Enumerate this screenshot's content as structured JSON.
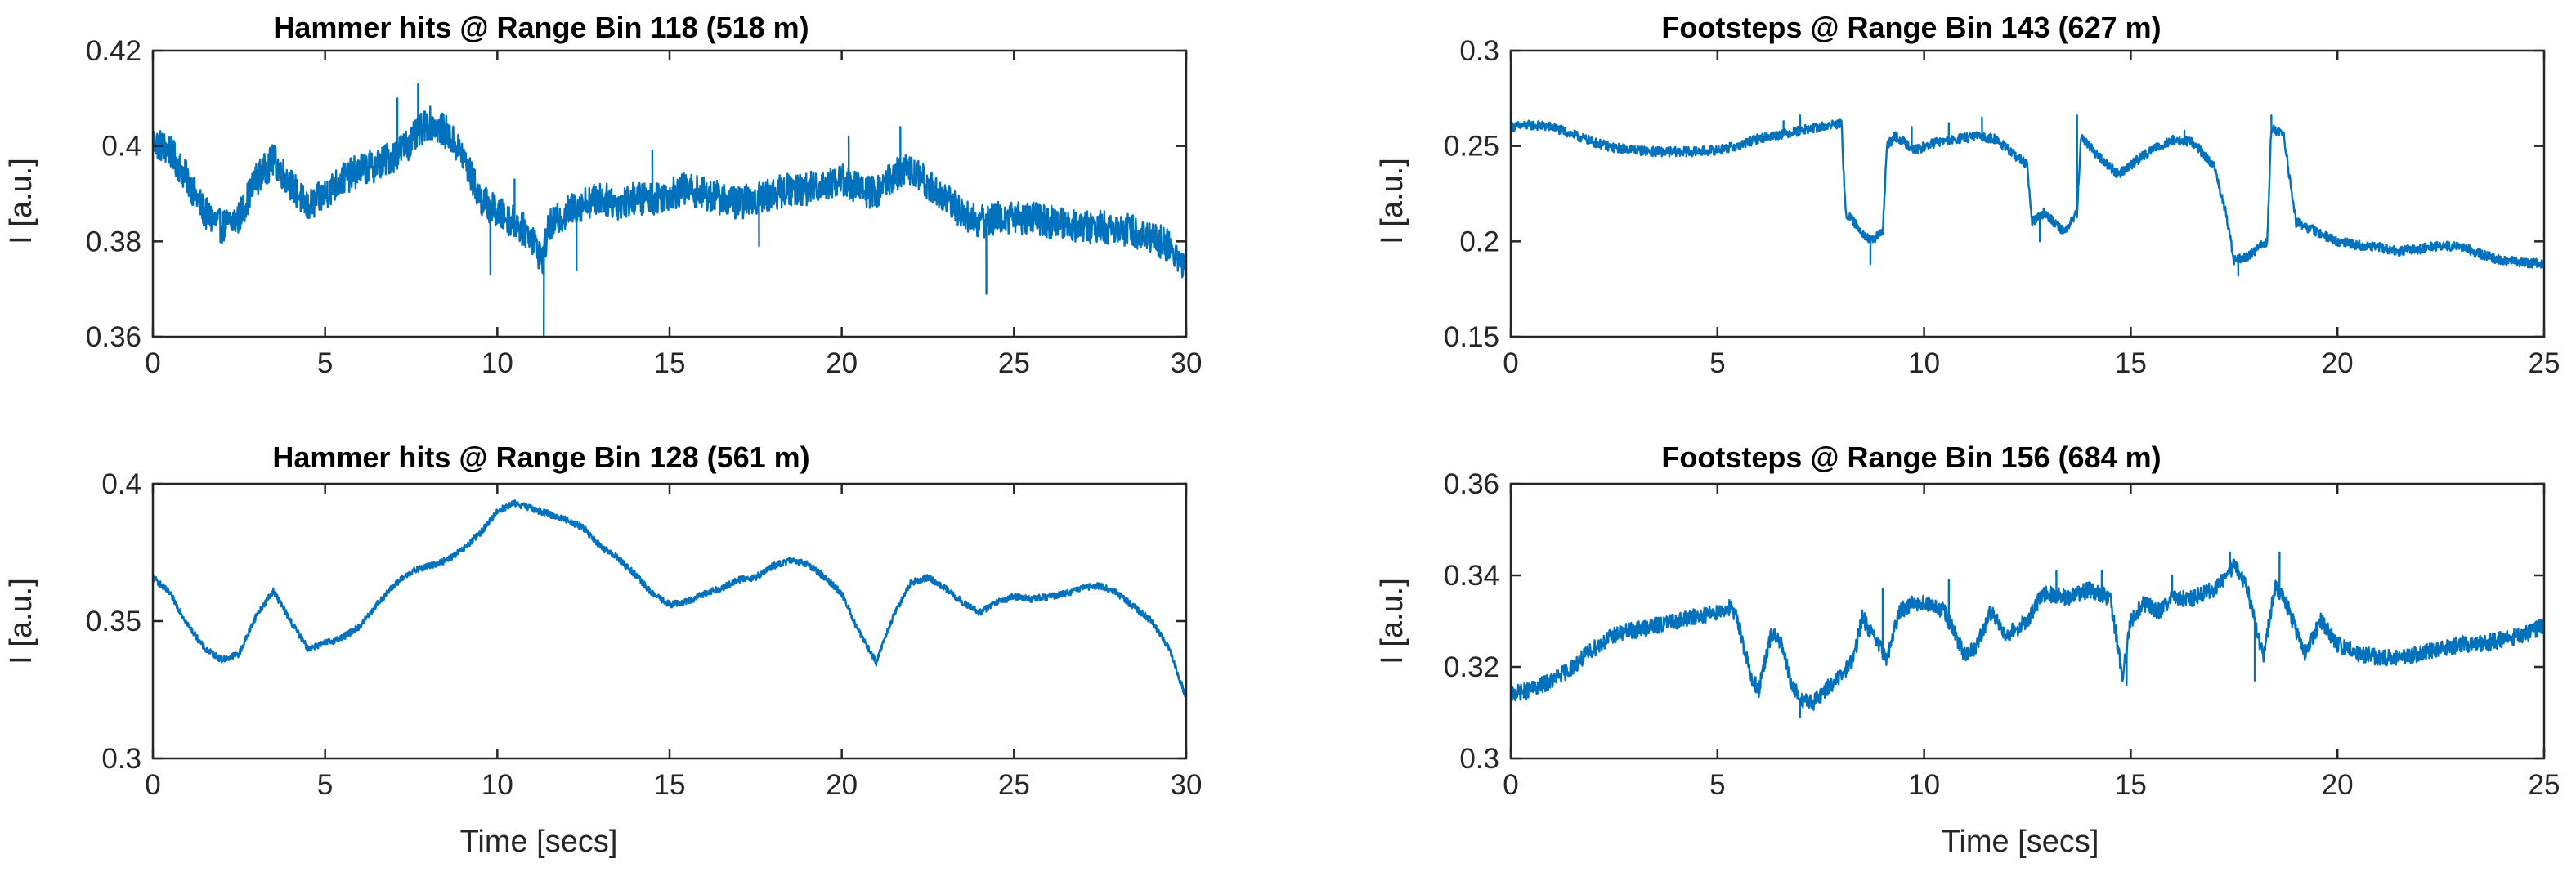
{
  "chart_data": [
    {
      "type": "line",
      "title": "Hammer hits @ Range Bin 118 (518 m)",
      "xlabel": "",
      "ylabel": "I [a.u.]",
      "xlim": [
        0,
        30
      ],
      "ylim": [
        0.36,
        0.42
      ],
      "xticks": [
        0,
        5,
        10,
        15,
        20,
        25,
        30
      ],
      "yticks": [
        0.36,
        0.38,
        0.4,
        0.42
      ],
      "xtick_labels": [
        "0",
        "5",
        "10",
        "15",
        "20",
        "25",
        "30"
      ],
      "ytick_labels": [
        "0.36",
        "0.38",
        "0.4",
        "0.42"
      ],
      "color": "#0072BD",
      "noise": 0.0035,
      "x": [
        0,
        0.5,
        1,
        1.5,
        2,
        2.5,
        3,
        3.5,
        4,
        4.5,
        5,
        5.5,
        6,
        6.5,
        7,
        7.5,
        8,
        8.5,
        9,
        9.5,
        10,
        10.5,
        11,
        11.3,
        11.5,
        12,
        12.5,
        13,
        13.5,
        14,
        14.5,
        15,
        15.5,
        16,
        16.5,
        17,
        17.5,
        18,
        18.5,
        19,
        19.5,
        20,
        20.5,
        21,
        21.5,
        22,
        22.5,
        23,
        23.5,
        24,
        24.5,
        25,
        25.5,
        26,
        26.5,
        27,
        27.5,
        28,
        28.5,
        29,
        29.5,
        30
      ],
      "y": [
        0.401,
        0.399,
        0.393,
        0.386,
        0.383,
        0.385,
        0.393,
        0.397,
        0.392,
        0.387,
        0.39,
        0.393,
        0.395,
        0.396,
        0.398,
        0.401,
        0.405,
        0.403,
        0.398,
        0.389,
        0.386,
        0.384,
        0.381,
        0.376,
        0.383,
        0.386,
        0.388,
        0.389,
        0.388,
        0.389,
        0.389,
        0.39,
        0.391,
        0.39,
        0.389,
        0.388,
        0.389,
        0.39,
        0.391,
        0.391,
        0.392,
        0.393,
        0.391,
        0.39,
        0.394,
        0.395,
        0.392,
        0.389,
        0.386,
        0.384,
        0.385,
        0.385,
        0.385,
        0.384,
        0.384,
        0.383,
        0.383,
        0.383,
        0.382,
        0.381,
        0.379,
        0.374
      ],
      "spikes": [
        [
          7.1,
          0.41
        ],
        [
          7.7,
          0.413
        ],
        [
          9.8,
          0.373
        ],
        [
          10.5,
          0.393
        ],
        [
          11.35,
          0.36
        ],
        [
          12.3,
          0.374
        ],
        [
          14.5,
          0.399
        ],
        [
          17.6,
          0.379
        ],
        [
          20.2,
          0.402
        ],
        [
          21.7,
          0.404
        ],
        [
          24.2,
          0.369
        ]
      ]
    },
    {
      "type": "line",
      "title": "Footsteps @ Range Bin 143 (627 m)",
      "xlabel": "",
      "ylabel": "I [a.u.]",
      "xlim": [
        0,
        25
      ],
      "ylim": [
        0.15,
        0.3
      ],
      "xticks": [
        0,
        5,
        10,
        15,
        20,
        25
      ],
      "yticks": [
        0.15,
        0.2,
        0.25,
        0.3
      ],
      "xtick_labels": [
        "0",
        "5",
        "10",
        "15",
        "20",
        "25"
      ],
      "ytick_labels": [
        "0.15",
        "0.2",
        "0.25",
        "0.3"
      ],
      "color": "#0072BD",
      "noise": 0.0025,
      "x": [
        0,
        0.5,
        1,
        1.5,
        2,
        2.5,
        3,
        3.5,
        4,
        4.5,
        5,
        5.5,
        6,
        6.5,
        7,
        7.5,
        8,
        8.1,
        8.3,
        8.7,
        9,
        9.1,
        9.3,
        9.8,
        10.3,
        10.7,
        11.2,
        11.7,
        12.2,
        12.5,
        12.6,
        12.9,
        13.4,
        13.7,
        13.8,
        14.2,
        14.7,
        15,
        15.5,
        16,
        16.5,
        17,
        17.3,
        17.5,
        17.8,
        18.3,
        18.4,
        18.7,
        19,
        19.5,
        20,
        20.5,
        21,
        21.5,
        22,
        22.5,
        23,
        23.5,
        24,
        24.5,
        25
      ],
      "y": [
        0.26,
        0.261,
        0.26,
        0.256,
        0.252,
        0.249,
        0.248,
        0.247,
        0.247,
        0.247,
        0.248,
        0.25,
        0.254,
        0.256,
        0.258,
        0.26,
        0.262,
        0.215,
        0.21,
        0.2,
        0.205,
        0.25,
        0.255,
        0.248,
        0.252,
        0.253,
        0.255,
        0.254,
        0.245,
        0.24,
        0.21,
        0.215,
        0.205,
        0.215,
        0.255,
        0.245,
        0.235,
        0.24,
        0.248,
        0.253,
        0.252,
        0.24,
        0.215,
        0.19,
        0.192,
        0.2,
        0.26,
        0.255,
        0.21,
        0.205,
        0.2,
        0.198,
        0.197,
        0.195,
        0.196,
        0.198,
        0.197,
        0.193,
        0.19,
        0.189,
        0.188
      ],
      "spikes": [
        [
          6.2,
          0.256
        ],
        [
          6.6,
          0.263
        ],
        [
          7.0,
          0.266
        ],
        [
          9.7,
          0.26
        ],
        [
          10.6,
          0.262
        ],
        [
          11.4,
          0.265
        ],
        [
          13.7,
          0.266
        ],
        [
          16.3,
          0.258
        ],
        [
          18.4,
          0.266
        ],
        [
          8.7,
          0.188
        ],
        [
          12.8,
          0.2
        ],
        [
          17.6,
          0.182
        ]
      ]
    },
    {
      "type": "line",
      "title": "Hammer hits @ Range Bin 128 (561 m)",
      "xlabel": "Time [secs]",
      "ylabel": "I [a.u.]",
      "xlim": [
        0,
        30
      ],
      "ylim": [
        0.3,
        0.4
      ],
      "xticks": [
        0,
        5,
        10,
        15,
        20,
        25,
        30
      ],
      "yticks": [
        0.3,
        0.35,
        0.4
      ],
      "xtick_labels": [
        "0",
        "5",
        "10",
        "15",
        "20",
        "25",
        "30"
      ],
      "ytick_labels": [
        "0.3",
        "0.35",
        "0.4"
      ],
      "color": "#0072BD",
      "noise": 0.0012,
      "x": [
        0,
        0.5,
        1,
        1.5,
        2,
        2.5,
        3,
        3.5,
        4,
        4.5,
        5,
        5.5,
        6,
        6.5,
        7,
        7.5,
        8,
        8.5,
        9,
        9.5,
        10,
        10.5,
        11,
        11.5,
        12,
        12.5,
        13,
        13.5,
        14,
        14.5,
        15,
        15.5,
        16,
        16.5,
        17,
        17.5,
        18,
        18.5,
        19,
        19.5,
        20,
        20.5,
        21,
        21.5,
        22,
        22.5,
        23,
        23.5,
        24,
        24.5,
        25,
        25.5,
        26,
        26.5,
        27,
        27.5,
        28,
        28.5,
        29,
        29.5,
        30
      ],
      "y": [
        0.366,
        0.36,
        0.349,
        0.34,
        0.336,
        0.338,
        0.352,
        0.361,
        0.35,
        0.34,
        0.342,
        0.344,
        0.348,
        0.356,
        0.363,
        0.368,
        0.37,
        0.372,
        0.376,
        0.382,
        0.39,
        0.393,
        0.391,
        0.389,
        0.387,
        0.384,
        0.377,
        0.373,
        0.367,
        0.36,
        0.356,
        0.357,
        0.36,
        0.362,
        0.365,
        0.366,
        0.37,
        0.372,
        0.371,
        0.366,
        0.36,
        0.346,
        0.335,
        0.352,
        0.364,
        0.366,
        0.362,
        0.357,
        0.353,
        0.357,
        0.359,
        0.358,
        0.359,
        0.36,
        0.362,
        0.363,
        0.36,
        0.355,
        0.35,
        0.34,
        0.322
      ]
    },
    {
      "type": "line",
      "title": "Footsteps @ Range Bin 156 (684 m)",
      "xlabel": "Time [secs]",
      "ylabel": "I [a.u.]",
      "xlim": [
        0,
        25
      ],
      "ylim": [
        0.3,
        0.36
      ],
      "xticks": [
        0,
        5,
        10,
        15,
        20,
        25
      ],
      "yticks": [
        0.3,
        0.32,
        0.34,
        0.36
      ],
      "xtick_labels": [
        "0",
        "5",
        "10",
        "15",
        "20",
        "25"
      ],
      "ytick_labels": [
        "0.3",
        "0.32",
        "0.34",
        "0.36"
      ],
      "color": "#0072BD",
      "noise": 0.0018,
      "x": [
        0,
        0.5,
        1,
        1.5,
        2,
        2.5,
        3,
        3.5,
        4,
        4.5,
        5,
        5.3,
        5.5,
        5.8,
        6,
        6.3,
        6.5,
        6.8,
        7,
        7.3,
        7.6,
        8,
        8.3,
        8.5,
        8.8,
        9.1,
        9.4,
        9.7,
        10,
        10.5,
        11,
        11.3,
        11.6,
        12,
        12.5,
        12.8,
        13,
        13.5,
        14,
        14.5,
        14.8,
        15,
        15.3,
        15.7,
        16,
        16.5,
        17,
        17.5,
        17.8,
        18.2,
        18.5,
        18.8,
        19.2,
        19.6,
        20,
        20.5,
        21,
        21.5,
        22,
        22.5,
        23,
        23.5,
        24,
        24.5,
        25
      ],
      "y": [
        0.314,
        0.315,
        0.317,
        0.32,
        0.324,
        0.327,
        0.328,
        0.329,
        0.33,
        0.331,
        0.332,
        0.333,
        0.33,
        0.318,
        0.315,
        0.327,
        0.326,
        0.316,
        0.313,
        0.312,
        0.315,
        0.318,
        0.322,
        0.331,
        0.326,
        0.322,
        0.332,
        0.334,
        0.334,
        0.332,
        0.322,
        0.325,
        0.332,
        0.327,
        0.33,
        0.335,
        0.336,
        0.335,
        0.337,
        0.335,
        0.318,
        0.33,
        0.334,
        0.332,
        0.335,
        0.335,
        0.337,
        0.342,
        0.338,
        0.322,
        0.338,
        0.333,
        0.323,
        0.33,
        0.325,
        0.323,
        0.322,
        0.322,
        0.323,
        0.324,
        0.325,
        0.325,
        0.326,
        0.327,
        0.329
      ],
      "spikes": [
        [
          9.0,
          0.337
        ],
        [
          10.6,
          0.339
        ],
        [
          13.2,
          0.341
        ],
        [
          14.3,
          0.341
        ],
        [
          16.0,
          0.34
        ],
        [
          17.4,
          0.345
        ],
        [
          18.6,
          0.345
        ],
        [
          7.0,
          0.309
        ],
        [
          14.9,
          0.316
        ],
        [
          18.0,
          0.317
        ]
      ]
    }
  ]
}
